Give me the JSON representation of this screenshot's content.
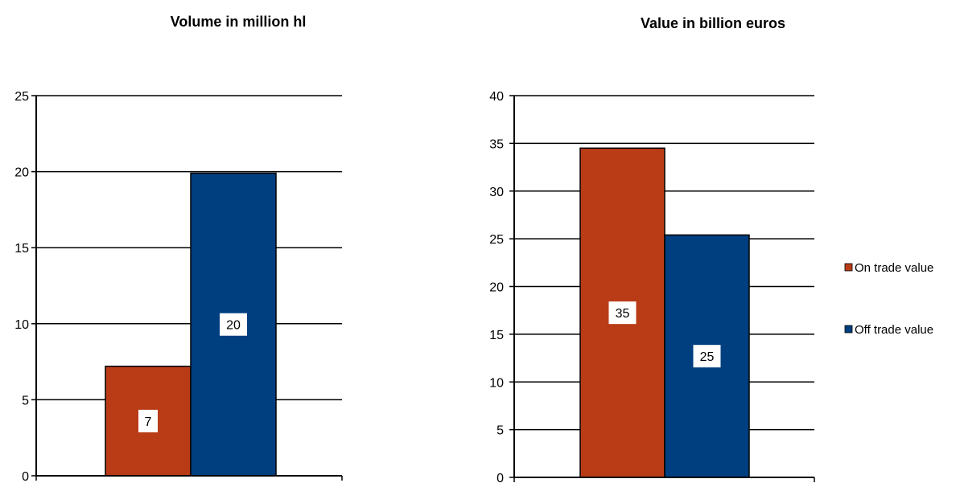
{
  "chart_data": [
    {
      "type": "bar",
      "title": "Volume in million hl",
      "xlabel": "",
      "ylabel": "",
      "ylim": [
        0,
        25
      ],
      "yticks": [
        0,
        5,
        10,
        15,
        20,
        25
      ],
      "grid": true,
      "data_labels": [
        "7",
        "20"
      ],
      "series": [
        {
          "name": "On trade value",
          "color": "#b93c17",
          "values": [
            7.2
          ]
        },
        {
          "name": "Off trade value",
          "color": "#003f7f",
          "values": [
            19.9
          ]
        }
      ]
    },
    {
      "type": "bar",
      "title": "Value in billion euros",
      "xlabel": "",
      "ylabel": "",
      "ylim": [
        0,
        40
      ],
      "yticks": [
        0,
        5,
        10,
        15,
        20,
        25,
        30,
        35,
        40
      ],
      "grid": true,
      "data_labels": [
        "35",
        "25"
      ],
      "legend": "right",
      "series": [
        {
          "name": "On trade value",
          "color": "#b93c17",
          "values": [
            34.5
          ]
        },
        {
          "name": "Off trade value",
          "color": "#003f7f",
          "values": [
            25.4
          ]
        }
      ]
    }
  ],
  "legend": {
    "placement": "right",
    "items": [
      {
        "label": "On trade value",
        "color": "#b93c17"
      },
      {
        "label": "Off trade value",
        "color": "#003f7f"
      }
    ]
  }
}
